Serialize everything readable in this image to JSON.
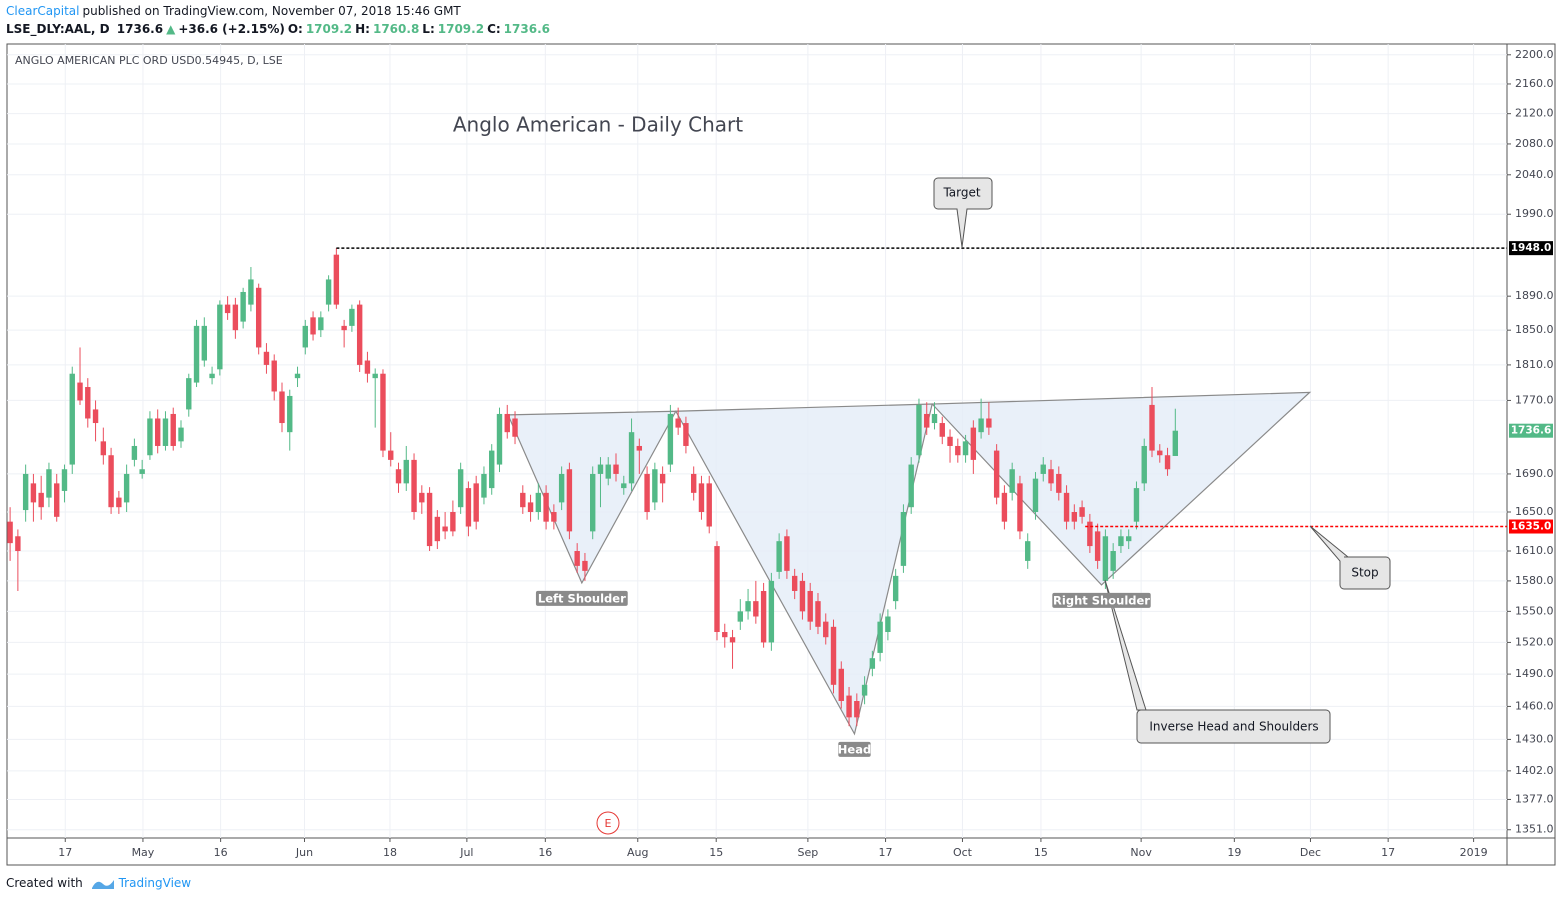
{
  "header": {
    "author": "ClearCapital",
    "published": "published on TradingView.com, November 07, 2018 15:46 GMT",
    "symbol": "LSE_DLY:AAL, D",
    "price": "1736.6",
    "arrow": "▲",
    "change": "+36.6 (+2.15%)",
    "o_label": "O:",
    "open": "1709.2",
    "h_label": "H:",
    "high": "1760.8",
    "l_label": "L:",
    "low": "1709.2",
    "c_label": "C:",
    "close": "1736.6"
  },
  "footer": {
    "created": "Created with",
    "brand": "TradingView"
  },
  "annotations": {
    "target": "Target",
    "stop": "Stop",
    "pattern": "Inverse Head and Shoulders",
    "earnings": "E"
  },
  "chart_data": {
    "type": "candlestick",
    "title": "Anglo American - Daily Chart",
    "symbol_label": "ANGLO AMERICAN PLC ORD USD0.54945, D, LSE",
    "log_scale": true,
    "grid": true,
    "up_color": "#53b987",
    "down_color": "#eb4d5c",
    "ylim": [
      1344,
      2215
    ],
    "yticks": [
      {
        "value": 2200,
        "label": "2200.0"
      },
      {
        "value": 2160,
        "label": "2160.0"
      },
      {
        "value": 2120,
        "label": "2120.0"
      },
      {
        "value": 2080,
        "label": "2080.0"
      },
      {
        "value": 2040,
        "label": "2040.0"
      },
      {
        "value": 1990,
        "label": "1990.0"
      },
      {
        "value": 1890,
        "label": "1890.0"
      },
      {
        "value": 1850,
        "label": "1850.0"
      },
      {
        "value": 1810,
        "label": "1810.0"
      },
      {
        "value": 1770,
        "label": "1770.0"
      },
      {
        "value": 1690,
        "label": "1690.0"
      },
      {
        "value": 1650,
        "label": "1650.0"
      },
      {
        "value": 1610,
        "label": "1610.0"
      },
      {
        "value": 1580,
        "label": "1580.0"
      },
      {
        "value": 1550,
        "label": "1550.0"
      },
      {
        "value": 1520,
        "label": "1520.0"
      },
      {
        "value": 1490,
        "label": "1490.0"
      },
      {
        "value": 1460,
        "label": "1460.0"
      },
      {
        "value": 1430,
        "label": "1430.0"
      },
      {
        "value": 1402,
        "label": "1402.0"
      },
      {
        "value": 1377,
        "label": "1377.0"
      },
      {
        "value": 1351,
        "label": "1351.0"
      }
    ],
    "xlim": [
      -0.4,
      192.7
    ],
    "xticks": [
      {
        "value": 7.1,
        "label": "17"
      },
      {
        "value": 17.1,
        "label": "May"
      },
      {
        "value": 27.1,
        "label": "16"
      },
      {
        "value": 37.9,
        "label": "Jun"
      },
      {
        "value": 48.9,
        "label": "18"
      },
      {
        "value": 58.8,
        "label": "Jul"
      },
      {
        "value": 68.9,
        "label": "16"
      },
      {
        "value": 80.8,
        "label": "Aug"
      },
      {
        "value": 90.9,
        "label": "15"
      },
      {
        "value": 102.7,
        "label": "Sep"
      },
      {
        "value": 112.7,
        "label": "17"
      },
      {
        "value": 122.6,
        "label": "Oct"
      },
      {
        "value": 132.7,
        "label": "15"
      },
      {
        "value": 145.6,
        "label": "Nov"
      },
      {
        "value": 157.6,
        "label": "19"
      },
      {
        "value": 167.4,
        "label": "Dec"
      },
      {
        "value": 177.4,
        "label": "17"
      },
      {
        "value": 188.4,
        "label": "2019"
      }
    ],
    "ohlc": [
      [
        1640,
        1655,
        1600,
        1618
      ],
      [
        1625,
        1632,
        1570,
        1610
      ],
      [
        1652,
        1700,
        1640,
        1690
      ],
      [
        1680,
        1690,
        1640,
        1660
      ],
      [
        1670,
        1688,
        1642,
        1655
      ],
      [
        1665,
        1702,
        1655,
        1695
      ],
      [
        1680,
        1690,
        1640,
        1645
      ],
      [
        1672,
        1700,
        1660,
        1695
      ],
      [
        1700,
        1808,
        1690,
        1800
      ],
      [
        1790,
        1830,
        1765,
        1770
      ],
      [
        1785,
        1795,
        1740,
        1750
      ],
      [
        1760,
        1770,
        1725,
        1745
      ],
      [
        1725,
        1740,
        1700,
        1710
      ],
      [
        1710,
        1718,
        1648,
        1655
      ],
      [
        1665,
        1672,
        1648,
        1655
      ],
      [
        1660,
        1700,
        1650,
        1690
      ],
      [
        1705,
        1728,
        1698,
        1720
      ],
      [
        1690,
        1705,
        1685,
        1695
      ],
      [
        1710,
        1758,
        1705,
        1750
      ],
      [
        1750,
        1760,
        1712,
        1720
      ],
      [
        1720,
        1758,
        1715,
        1750
      ],
      [
        1755,
        1762,
        1715,
        1720
      ],
      [
        1725,
        1748,
        1718,
        1740
      ],
      [
        1760,
        1800,
        1752,
        1795
      ],
      [
        1790,
        1862,
        1785,
        1855
      ],
      [
        1815,
        1865,
        1808,
        1855
      ],
      [
        1795,
        1808,
        1788,
        1800
      ],
      [
        1805,
        1885,
        1798,
        1880
      ],
      [
        1880,
        1890,
        1862,
        1870
      ],
      [
        1880,
        1888,
        1840,
        1850
      ],
      [
        1860,
        1900,
        1852,
        1895
      ],
      [
        1880,
        1925,
        1872,
        1910
      ],
      [
        1900,
        1905,
        1822,
        1830
      ],
      [
        1825,
        1835,
        1800,
        1810
      ],
      [
        1815,
        1822,
        1770,
        1780
      ],
      [
        1780,
        1790,
        1735,
        1745
      ],
      [
        1735,
        1782,
        1715,
        1775
      ],
      [
        1795,
        1808,
        1785,
        1800
      ],
      [
        1830,
        1862,
        1822,
        1855
      ],
      [
        1865,
        1872,
        1838,
        1845
      ],
      [
        1850,
        1872,
        1842,
        1865
      ],
      [
        1880,
        1915,
        1872,
        1910
      ],
      [
        1940,
        1948,
        1875,
        1880
      ],
      [
        1855,
        1862,
        1830,
        1850
      ],
      [
        1855,
        1880,
        1848,
        1875
      ],
      [
        1880,
        1885,
        1802,
        1810
      ],
      [
        1815,
        1825,
        1790,
        1800
      ],
      [
        1795,
        1806,
        1740,
        1800
      ],
      [
        1800,
        1805,
        1708,
        1715
      ],
      [
        1715,
        1735,
        1698,
        1705
      ],
      [
        1695,
        1702,
        1670,
        1680
      ],
      [
        1680,
        1720,
        1672,
        1705
      ],
      [
        1705,
        1712,
        1642,
        1650
      ],
      [
        1670,
        1678,
        1648,
        1660
      ],
      [
        1670,
        1676,
        1610,
        1615
      ],
      [
        1645,
        1652,
        1612,
        1620
      ],
      [
        1635,
        1650,
        1622,
        1630
      ],
      [
        1650,
        1662,
        1625,
        1630
      ],
      [
        1655,
        1702,
        1648,
        1695
      ],
      [
        1675,
        1682,
        1625,
        1635
      ],
      [
        1680,
        1688,
        1632,
        1640
      ],
      [
        1665,
        1698,
        1658,
        1690
      ],
      [
        1675,
        1722,
        1668,
        1715
      ],
      [
        1700,
        1762,
        1692,
        1755
      ],
      [
        1755,
        1765,
        1728,
        1735
      ],
      [
        1750,
        1758,
        1722,
        1730
      ],
      [
        1670,
        1678,
        1648,
        1655
      ],
      [
        1660,
        1668,
        1640,
        1650
      ],
      [
        1650,
        1680,
        1642,
        1670
      ],
      [
        1670,
        1678,
        1632,
        1640
      ],
      [
        1650,
        1658,
        1632,
        1640
      ],
      [
        1660,
        1698,
        1652,
        1690
      ],
      [
        1695,
        1702,
        1622,
        1630
      ],
      [
        1610,
        1618,
        1588,
        1595
      ],
      [
        1600,
        1608,
        1580,
        1590
      ],
      [
        1630,
        1698,
        1622,
        1690
      ],
      [
        1690,
        1708,
        1655,
        1700
      ],
      [
        1685,
        1708,
        1678,
        1700
      ],
      [
        1700,
        1712,
        1682,
        1690
      ],
      [
        1675,
        1688,
        1668,
        1680
      ],
      [
        1680,
        1750,
        1672,
        1735
      ],
      [
        1720,
        1728,
        1690,
        1715
      ],
      [
        1690,
        1698,
        1642,
        1650
      ],
      [
        1660,
        1702,
        1652,
        1695
      ],
      [
        1690,
        1698,
        1660,
        1680
      ],
      [
        1700,
        1765,
        1692,
        1755
      ],
      [
        1750,
        1762,
        1732,
        1740
      ],
      [
        1745,
        1752,
        1712,
        1720
      ],
      [
        1690,
        1698,
        1662,
        1670
      ],
      [
        1680,
        1688,
        1642,
        1650
      ],
      [
        1680,
        1688,
        1628,
        1635
      ],
      [
        1615,
        1620,
        1522,
        1530
      ],
      [
        1530,
        1538,
        1515,
        1525
      ],
      [
        1525,
        1532,
        1495,
        1520
      ],
      [
        1540,
        1562,
        1532,
        1550
      ],
      [
        1550,
        1572,
        1542,
        1560
      ],
      [
        1560,
        1580,
        1538,
        1545
      ],
      [
        1570,
        1578,
        1515,
        1520
      ],
      [
        1520,
        1588,
        1512,
        1580
      ],
      [
        1589,
        1628,
        1582,
        1620
      ],
      [
        1625,
        1632,
        1582,
        1590
      ],
      [
        1585,
        1592,
        1562,
        1570
      ],
      [
        1580,
        1588,
        1542,
        1550
      ],
      [
        1570,
        1578,
        1532,
        1540
      ],
      [
        1560,
        1568,
        1528,
        1535
      ],
      [
        1540,
        1548,
        1518,
        1525
      ],
      [
        1535,
        1542,
        1472,
        1480
      ],
      [
        1495,
        1502,
        1458,
        1465
      ],
      [
        1470,
        1478,
        1442,
        1450
      ],
      [
        1465,
        1472,
        1442,
        1450
      ],
      [
        1470,
        1488,
        1462,
        1480
      ],
      [
        1495,
        1512,
        1488,
        1505
      ],
      [
        1510,
        1548,
        1502,
        1540
      ],
      [
        1530,
        1552,
        1522,
        1545
      ],
      [
        1560,
        1592,
        1552,
        1585
      ],
      [
        1595,
        1658,
        1588,
        1650
      ],
      [
        1655,
        1708,
        1648,
        1700
      ],
      [
        1710,
        1772,
        1702,
        1765
      ],
      [
        1755,
        1768,
        1732,
        1740
      ],
      [
        1745,
        1768,
        1738,
        1755
      ],
      [
        1745,
        1752,
        1722,
        1730
      ],
      [
        1730,
        1738,
        1702,
        1720
      ],
      [
        1720,
        1728,
        1702,
        1710
      ],
      [
        1710,
        1732,
        1702,
        1725
      ],
      [
        1740,
        1748,
        1690,
        1705
      ],
      [
        1735,
        1772,
        1728,
        1750
      ],
      [
        1750,
        1768,
        1732,
        1740
      ],
      [
        1715,
        1722,
        1658,
        1665
      ],
      [
        1670,
        1678,
        1632,
        1640
      ],
      [
        1670,
        1702,
        1662,
        1695
      ],
      [
        1680,
        1688,
        1622,
        1630
      ],
      [
        1600,
        1628,
        1592,
        1620
      ],
      [
        1650,
        1692,
        1642,
        1685
      ],
      [
        1690,
        1708,
        1682,
        1700
      ],
      [
        1695,
        1705,
        1672,
        1680
      ],
      [
        1690,
        1698,
        1662,
        1670
      ],
      [
        1670,
        1678,
        1632,
        1640
      ],
      [
        1650,
        1658,
        1632,
        1640
      ],
      [
        1655,
        1662,
        1638,
        1645
      ],
      [
        1640,
        1648,
        1608,
        1615
      ],
      [
        1630,
        1638,
        1592,
        1600
      ],
      [
        1580,
        1632,
        1572,
        1625
      ],
      [
        1590,
        1618,
        1582,
        1610
      ],
      [
        1615,
        1632,
        1608,
        1625
      ],
      [
        1620,
        1632,
        1612,
        1625
      ],
      [
        1640,
        1682,
        1632,
        1675
      ],
      [
        1680,
        1728,
        1672,
        1720
      ],
      [
        1765,
        1785,
        1708,
        1715
      ],
      [
        1715,
        1722,
        1702,
        1710
      ],
      [
        1710,
        1718,
        1688,
        1695
      ],
      [
        1709.2,
        1760.8,
        1709.2,
        1736.6
      ]
    ],
    "last_price": {
      "value": 1736.6,
      "label": "1736.6",
      "color": "#53b987"
    },
    "target": {
      "value": 1948,
      "label": "1948.0",
      "from": 42,
      "color": "#000000"
    },
    "stop": {
      "value": 1635,
      "label": "1635.0",
      "from": 138.4,
      "color": "#ff0000"
    },
    "pattern": {
      "points": [
        [
          64.1,
          1754
        ],
        [
          73.6,
          1578
        ],
        [
          85.7,
          1758
        ],
        [
          108.7,
          1435
        ],
        [
          118.7,
          1766
        ],
        [
          140.5,
          1576
        ],
        [
          167.3,
          1779
        ]
      ],
      "labels": [
        "Left Shoulder",
        "Head",
        "Right Shoulder"
      ],
      "fill": "#e3ecf7",
      "stroke": "#8a8a8a"
    }
  }
}
